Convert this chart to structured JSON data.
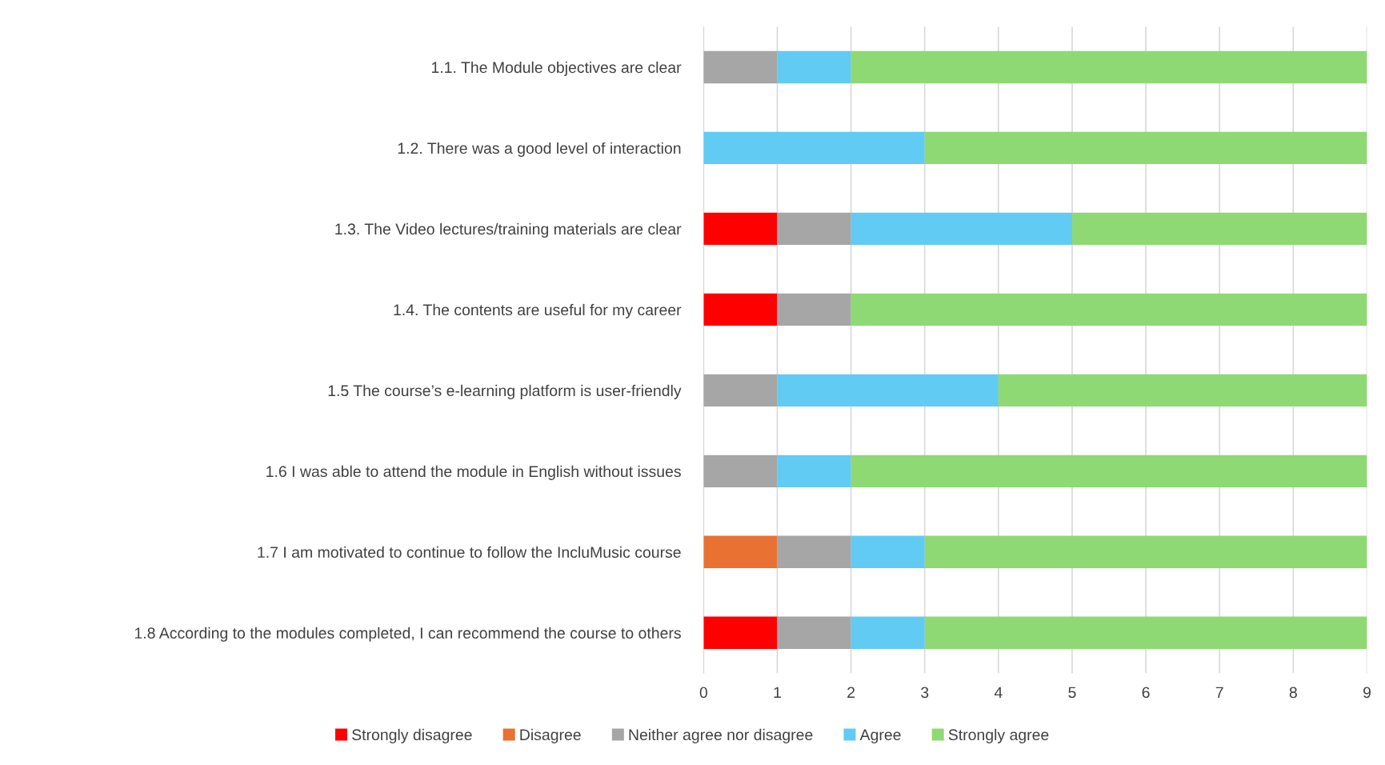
{
  "chart_data": {
    "type": "bar",
    "orientation": "horizontal",
    "stacked": true,
    "categories": [
      "1.1. The Module objectives are clear",
      "1.2. There was a good level of interaction",
      "1.3. The Video lectures/training materials are clear",
      "1.4. The contents are useful for my career",
      "1.5 The course’s e-learning platform is user-friendly",
      "1.6 I was able to attend the module in English without issues",
      "1.7 I am motivated to continue to follow the IncluMusic course",
      "1.8 According to the modules completed, I can recommend the course to others"
    ],
    "series": [
      {
        "name": "Strongly disagree",
        "color": "#ff0000",
        "values": [
          0,
          0,
          1,
          1,
          0,
          0,
          0,
          1
        ]
      },
      {
        "name": "Disagree",
        "color": "#e97132",
        "values": [
          0,
          0,
          0,
          0,
          0,
          0,
          1,
          0
        ]
      },
      {
        "name": "Neither agree nor disagree",
        "color": "#a6a6a6",
        "values": [
          1,
          0,
          1,
          1,
          1,
          1,
          1,
          1
        ]
      },
      {
        "name": "Agree",
        "color": "#61cbf3",
        "values": [
          1,
          3,
          3,
          0,
          3,
          1,
          1,
          1
        ]
      },
      {
        "name": "Strongly agree",
        "color": "#8ed973",
        "values": [
          7,
          6,
          4,
          7,
          5,
          7,
          6,
          6
        ]
      }
    ],
    "xlim": [
      0,
      9
    ],
    "xticks": [
      0,
      1,
      2,
      3,
      4,
      5,
      6,
      7,
      8,
      9
    ],
    "grid": "x",
    "legend": "bottom"
  }
}
